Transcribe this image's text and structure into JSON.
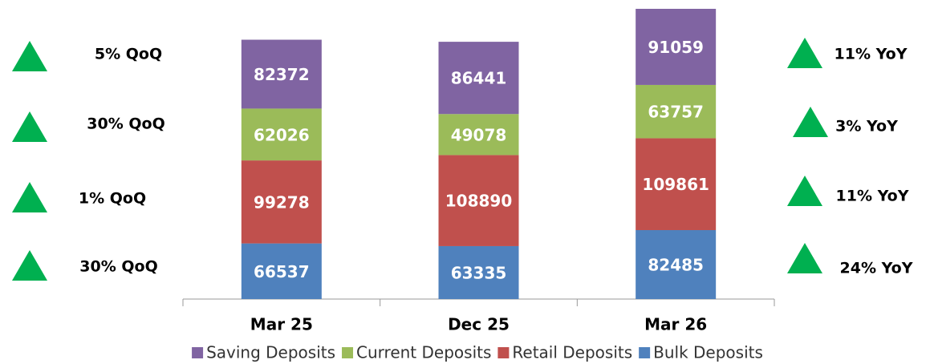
{
  "chart_data": {
    "type": "stacked_bar",
    "categories": [
      "Mar 25",
      "Dec 25",
      "Mar 26"
    ],
    "series": [
      {
        "name": "Saving Deposits",
        "color": "#8064a2",
        "values": [
          82372,
          86441,
          91059
        ]
      },
      {
        "name": "Current Deposits",
        "color": "#9bbb59",
        "values": [
          62026,
          49078,
          63757
        ]
      },
      {
        "name": "Retail Deposits",
        "color": "#c0504d",
        "values": [
          99278,
          108890,
          109861
        ]
      },
      {
        "name": "Bulk Deposits",
        "color": "#4f81bd",
        "values": [
          66537,
          63335,
          82485
        ]
      }
    ],
    "left_annotations": [
      "5% QoQ",
      "30% QoQ",
      "1% QoQ",
      "30% QoQ"
    ],
    "right_annotations": [
      "11% YoY",
      "3% YoY",
      "11% YoY",
      "24% YoY"
    ],
    "legend": "bottom"
  }
}
